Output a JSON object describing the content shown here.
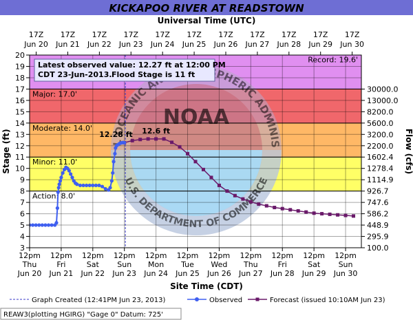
{
  "chart_data": {
    "type": "line",
    "title": "KICKAPOO RIVER AT READSTOWN",
    "top_axis_label": "Universal Time (UTC)",
    "xlabel": "Site Time (CDT)",
    "ylabel": "Stage (ft)",
    "y2label": "Flow (cfs)",
    "xlim": [
      0,
      10.5
    ],
    "x_unit": "days after 12pm CDT Jun 20",
    "ylim": [
      3,
      20
    ],
    "grid": true,
    "bottom_ticks": [
      {
        "time": "12pm",
        "day": "Thu",
        "date": "Jun 20"
      },
      {
        "time": "12pm",
        "day": "Fri",
        "date": "Jun 21"
      },
      {
        "time": "12pm",
        "day": "Sat",
        "date": "Jun 22"
      },
      {
        "time": "12pm",
        "day": "Sun",
        "date": "Jun 23"
      },
      {
        "time": "12pm",
        "day": "Mon",
        "date": "Jun 24"
      },
      {
        "time": "12pm",
        "day": "Tue",
        "date": "Jun 25"
      },
      {
        "time": "12pm",
        "day": "Wed",
        "date": "Jun 26"
      },
      {
        "time": "12pm",
        "day": "Thu",
        "date": "Jun 27"
      },
      {
        "time": "12pm",
        "day": "Fri",
        "date": "Jun 28"
      },
      {
        "time": "12pm",
        "day": "Sat",
        "date": "Jun 29"
      },
      {
        "time": "12pm",
        "day": "Sun",
        "date": "Jun 30"
      }
    ],
    "top_ticks": [
      {
        "time": "17Z",
        "date": "Jun 20"
      },
      {
        "time": "17Z",
        "date": "Jun 21"
      },
      {
        "time": "17Z",
        "date": "Jun 22"
      },
      {
        "time": "17Z",
        "date": "Jun 23"
      },
      {
        "time": "17Z",
        "date": "Jun 24"
      },
      {
        "time": "17Z",
        "date": "Jun 25"
      },
      {
        "time": "17Z",
        "date": "Jun 26"
      },
      {
        "time": "17Z",
        "date": "Jun 27"
      },
      {
        "time": "17Z",
        "date": "Jun 28"
      },
      {
        "time": "17Z",
        "date": "Jun 29"
      },
      {
        "time": "17Z",
        "date": "Jun 30"
      }
    ],
    "y_ticks": [
      3,
      4,
      5,
      6,
      7,
      8,
      9,
      10,
      11,
      12,
      13,
      14,
      15,
      16,
      17,
      18,
      19,
      20
    ],
    "flow_ticks": [
      {
        "stage": 3,
        "label": "100.0"
      },
      {
        "stage": 4,
        "label": "295.9"
      },
      {
        "stage": 5,
        "label": "448.9"
      },
      {
        "stage": 6,
        "label": "586.2"
      },
      {
        "stage": 7,
        "label": "747.6"
      },
      {
        "stage": 8,
        "label": "926.7"
      },
      {
        "stage": 9,
        "label": "1114.9"
      },
      {
        "stage": 10,
        "label": "1278.4"
      },
      {
        "stage": 11,
        "label": "1602.4"
      },
      {
        "stage": 12,
        "label": "2200.0"
      },
      {
        "stage": 13,
        "label": "3200.0"
      },
      {
        "stage": 14,
        "label": "5600.0"
      },
      {
        "stage": 15,
        "label": "8200.0"
      },
      {
        "stage": 16,
        "label": "13000.0"
      },
      {
        "stage": 17,
        "label": "30000.0"
      }
    ],
    "flood_categories": [
      {
        "name": "Record",
        "label": "Record: 19.6'",
        "from": 17,
        "to": 20,
        "color": "#e08ff0"
      },
      {
        "name": "Major",
        "label": "Major: 17.0'",
        "from": 14,
        "to": 17,
        "color": "#f0676b"
      },
      {
        "name": "Moderate",
        "label": "Moderate: 14.0'",
        "from": 11,
        "to": 14,
        "color": "#ffb866"
      },
      {
        "name": "Minor",
        "label": "Minor: 11.0'",
        "from": 8,
        "to": 11,
        "color": "#ffff66"
      },
      {
        "name": "Action",
        "label": "Action: 8.0'",
        "from": 3,
        "to": 8,
        "color": "#ffffff"
      }
    ],
    "record_stage": 19.6,
    "graph_created_x": 3.03,
    "series": [
      {
        "name": "Observed",
        "color": "#3f5ff0",
        "x": [
          0.0,
          0.1,
          0.2,
          0.3,
          0.4,
          0.5,
          0.6,
          0.7,
          0.8,
          0.85,
          0.88,
          0.9,
          0.92,
          0.94,
          0.97,
          1.0,
          1.05,
          1.1,
          1.15,
          1.2,
          1.25,
          1.3,
          1.35,
          1.4,
          1.45,
          1.5,
          1.6,
          1.7,
          1.8,
          1.9,
          2.0,
          2.1,
          2.2,
          2.3,
          2.4,
          2.5,
          2.55,
          2.6,
          2.63,
          2.66,
          2.7,
          2.72,
          2.75,
          2.8,
          2.85,
          2.9,
          2.95,
          3.0
        ],
        "y": [
          5.0,
          5.0,
          5.0,
          5.0,
          5.0,
          5.0,
          5.0,
          5.0,
          5.0,
          5.2,
          6.5,
          7.9,
          8.3,
          8.6,
          8.9,
          9.2,
          9.6,
          9.9,
          10.1,
          10.0,
          9.8,
          9.5,
          9.2,
          8.9,
          8.7,
          8.6,
          8.5,
          8.5,
          8.5,
          8.5,
          8.5,
          8.5,
          8.5,
          8.4,
          8.2,
          8.1,
          8.3,
          8.9,
          9.6,
          10.6,
          11.3,
          11.8,
          12.0,
          12.1,
          12.2,
          12.25,
          12.28,
          12.27
        ]
      },
      {
        "name": "Forecast",
        "color": "#6a1a6a",
        "x": [
          3.0,
          3.25,
          3.5,
          3.75,
          4.0,
          4.25,
          4.5,
          4.75,
          5.0,
          5.25,
          5.5,
          5.75,
          6.0,
          6.25,
          6.5,
          6.75,
          7.0,
          7.25,
          7.5,
          7.75,
          8.0,
          8.25,
          8.5,
          8.75,
          9.0,
          9.25,
          9.5,
          9.75,
          10.0,
          10.25
        ],
        "y": [
          12.27,
          12.45,
          12.55,
          12.6,
          12.6,
          12.6,
          12.3,
          11.9,
          11.3,
          10.6,
          9.9,
          9.2,
          8.5,
          8.0,
          7.6,
          7.3,
          7.05,
          6.85,
          6.7,
          6.55,
          6.45,
          6.35,
          6.25,
          6.15,
          6.05,
          6.0,
          5.95,
          5.9,
          5.85,
          5.8
        ]
      }
    ],
    "annotations": [
      {
        "text": "12.28 ft",
        "x": 2.95,
        "y": 12.28,
        "color": "#3f5ff0"
      },
      {
        "text": "12.6 ft",
        "x": 4.0,
        "y": 12.6,
        "color": "#6a1a6a"
      }
    ],
    "info_box": {
      "line1": "Latest observed value: 12.27 ft at 12:00 PM",
      "line2a": "CDT 23-Jun-2013.",
      "line2b": "Flood Stage is 11 ft"
    },
    "legend": {
      "created": "Graph Created (12:41PM Jun 23, 2013)",
      "observed": "Observed",
      "forecast": "Forecast (issued 10:10AM Jun 23)"
    },
    "footer": "REAW3(plotting HGIRG) \"Gage 0\" Datum: 725'",
    "watermark": {
      "center": "NOAA",
      "arc_top": "NATIONAL OCEANIC AND ATMOSPHERIC ADMINISTRATION",
      "arc_bottom": "U.S. DEPARTMENT OF COMMERCE"
    }
  }
}
